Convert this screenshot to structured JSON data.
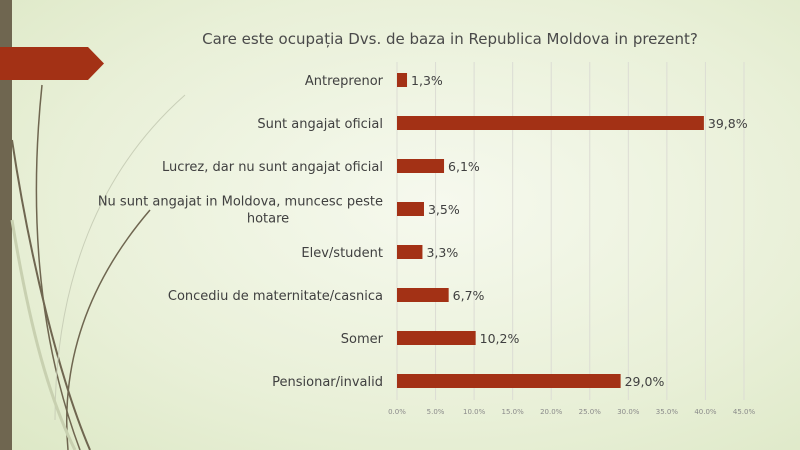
{
  "colors": {
    "bar": "#a33115",
    "sidebar": "#6f6650",
    "banner": "#a33115"
  },
  "chart_data": {
    "type": "bar",
    "orientation": "horizontal",
    "title": "Care este ocupația Dvs. de baza in Republica Moldova in prezent?",
    "categories": [
      "Antreprenor",
      "Sunt angajat oficial",
      "Lucrez, dar nu sunt angajat oficial",
      "Nu sunt angajat in Moldova, muncesc peste hotare",
      "Elev/student",
      "Concediu de maternitate/casnica",
      "Somer",
      "Pensionar/invalid"
    ],
    "category_lines": [
      [
        "Antreprenor"
      ],
      [
        "Sunt angajat oficial"
      ],
      [
        "Lucrez, dar nu sunt angajat oficial"
      ],
      [
        "Nu sunt angajat in Moldova, muncesc peste",
        "hotare"
      ],
      [
        "Elev/student"
      ],
      [
        "Concediu de maternitate/casnica"
      ],
      [
        "Somer"
      ],
      [
        "Pensionar/invalid"
      ]
    ],
    "values": [
      1.3,
      39.8,
      6.1,
      3.5,
      3.3,
      6.7,
      10.2,
      29.0
    ],
    "data_labels": [
      "1,3%",
      "39,8%",
      "6,1%",
      "3,5%",
      "3,3%",
      "6,7%",
      "10,2%",
      "29,0%"
    ],
    "xlim": [
      0,
      45
    ],
    "xticks": [
      0,
      5,
      10,
      15,
      20,
      25,
      30,
      35,
      40,
      45
    ],
    "xtick_labels": [
      "0.0%",
      "5.0%",
      "10.0%",
      "15.0%",
      "20.0%",
      "25.0%",
      "30.0%",
      "35.0%",
      "40.0%",
      "45.0%"
    ],
    "grid": true,
    "legend": "none"
  }
}
